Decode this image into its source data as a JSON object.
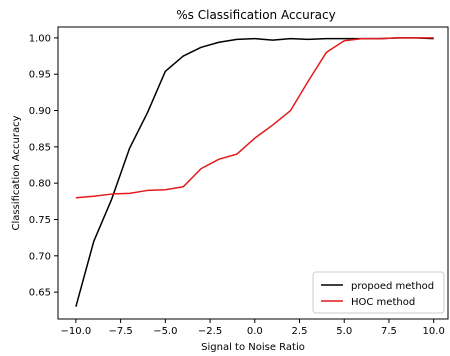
{
  "chart_data": {
    "type": "line",
    "title": "%s Classification Accuracy",
    "xlabel": "Signal to Noise Ratio",
    "ylabel": "Classification Accuracy",
    "xlim": [
      -11,
      10.8
    ],
    "ylim": [
      0.613,
      1.015
    ],
    "xticks": [
      -10.0,
      -7.5,
      -5.0,
      -2.5,
      0.0,
      2.5,
      5.0,
      7.5,
      10.0
    ],
    "xtick_labels": [
      "−10.0",
      "−7.5",
      "−5.0",
      "−2.5",
      "0.0",
      "2.5",
      "5.0",
      "7.5",
      "10.0"
    ],
    "yticks": [
      0.65,
      0.7,
      0.75,
      0.8,
      0.85,
      0.9,
      0.95,
      1.0
    ],
    "ytick_labels": [
      "0.65",
      "0.70",
      "0.75",
      "0.80",
      "0.85",
      "0.90",
      "0.95",
      "1.00"
    ],
    "grid": false,
    "legend_position": "lower-right",
    "x": [
      -10,
      -9,
      -8,
      -7,
      -6,
      -5,
      -4,
      -3,
      -2,
      -1,
      0,
      1,
      2,
      3,
      4,
      5,
      6,
      7,
      8,
      9,
      10
    ],
    "series": [
      {
        "name": "propoed method",
        "color": "#000000",
        "values": [
          0.63,
          0.72,
          0.778,
          0.848,
          0.897,
          0.954,
          0.975,
          0.987,
          0.994,
          0.998,
          0.999,
          0.997,
          0.999,
          0.998,
          0.999,
          0.999,
          0.999,
          0.999,
          1.0,
          1.0,
          0.999
        ]
      },
      {
        "name": "HOC method",
        "color": "#e41a1c",
        "values": [
          0.78,
          0.782,
          0.785,
          0.786,
          0.79,
          0.791,
          0.795,
          0.82,
          0.833,
          0.84,
          0.862,
          0.88,
          0.9,
          0.941,
          0.98,
          0.996,
          0.999,
          0.999,
          1.0,
          1.0,
          1.0
        ]
      }
    ]
  }
}
